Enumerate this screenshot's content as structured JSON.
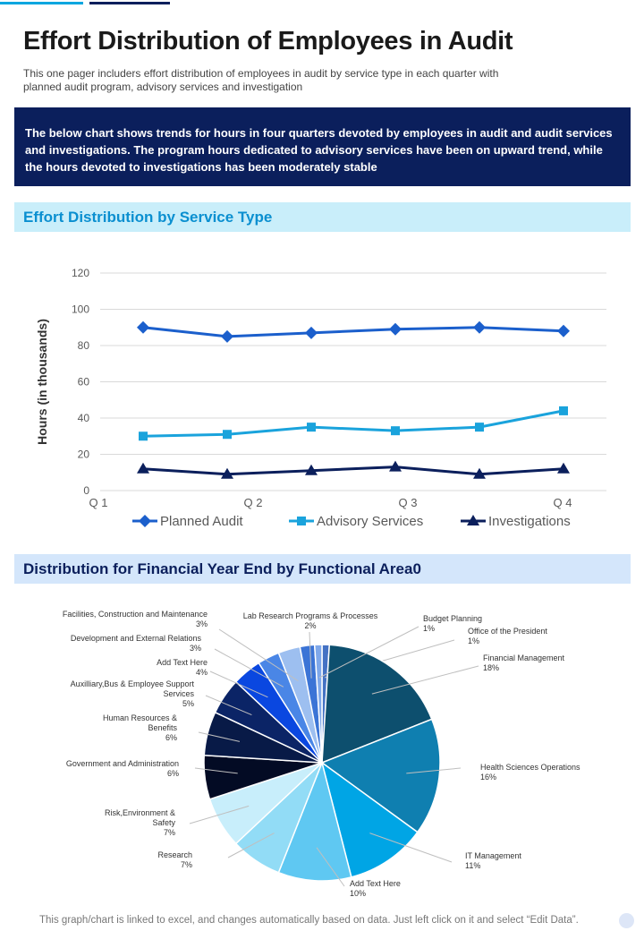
{
  "page": {
    "title": "Effort Distribution of Employees in Audit",
    "subtitle": "This one pager includers effort distribution of employees in audit by service type in each quarter with planned audit program, advisory services and investigation",
    "banner_text": "The below chart shows trends for hours in four quarters devoted by employees in audit and audit services and investigations. The program hours dedicated to advisory services have been on upward trend, while the hours devoted to investigations has been moderately stable",
    "section1_title": "Effort Distribution by Service Type",
    "section2_title": "Distribution for Financial Year End by Functional Area0",
    "footer": "This graph/chart is linked to excel,  and changes automatically based on data. Just left click on it and select “Edit Data”."
  },
  "chart_data": [
    {
      "type": "line",
      "title": "Effort Distribution by Service Type",
      "xlabel": "",
      "ylabel": "Hours (in thousands)",
      "ylim": [
        0,
        120
      ],
      "yticks": [
        0,
        20,
        40,
        60,
        80,
        100,
        120
      ],
      "x_tick_labels": [
        "Q 1",
        "Q 2",
        "Q 3",
        "Q 4"
      ],
      "n_points": 6,
      "legend": "bottom",
      "series": [
        {
          "name": "Planned Audit",
          "values": [
            90,
            85,
            87,
            89,
            90,
            88
          ],
          "color": "#1b5fcc",
          "marker": "diamond"
        },
        {
          "name": "Advisory Services",
          "values": [
            30,
            31,
            35,
            33,
            35,
            44
          ],
          "color": "#1aa3dc",
          "marker": "square"
        },
        {
          "name": "Investigations",
          "values": [
            12,
            9,
            11,
            13,
            9,
            12
          ],
          "color": "#0b1f5c",
          "marker": "triangle"
        }
      ]
    },
    {
      "type": "pie",
      "title": "Distribution for Financial Year End by Functional Area0",
      "slices": [
        {
          "label": "Office of the President",
          "value": 1,
          "color": "#4472c4"
        },
        {
          "label": "Financial  Management",
          "value": 18,
          "color": "#0d4f6e"
        },
        {
          "label": "Health Sciences Operations",
          "value": 16,
          "color": "#0f7fb0"
        },
        {
          "label": "IT Management",
          "value": 11,
          "color": "#00a5e5"
        },
        {
          "label": "Add Text Here",
          "value": 10,
          "color": "#5fc8f2"
        },
        {
          "label": "Research",
          "value": 7,
          "color": "#92dcf6"
        },
        {
          "label": "Risk,Environment  &\nSafety",
          "value": 7,
          "color": "#c8eefb"
        },
        {
          "label": "Government  and  Administration",
          "value": 6,
          "color": "#030b24"
        },
        {
          "label": "Human  Resources  &\nBenefits",
          "value": 6,
          "color": "#081a47"
        },
        {
          "label": "Auxilliary,Bus  &  Employee  Support\nServices",
          "value": 5,
          "color": "#0b2466"
        },
        {
          "label": "Add Text Here",
          "value": 4,
          "color": "#0a47e0"
        },
        {
          "label": "Development  and  External  Relations",
          "value": 3,
          "color": "#4a86e6"
        },
        {
          "label": "Facilities,  Construction  and  Maintenance",
          "value": 3,
          "color": "#9dbff0"
        },
        {
          "label": "Lab  Research  Programs  &  Processes",
          "value": 2,
          "color": "#3b74d6"
        },
        {
          "label": "Budget  Planning",
          "value": 1,
          "color": "#7fa8ea"
        }
      ]
    }
  ]
}
